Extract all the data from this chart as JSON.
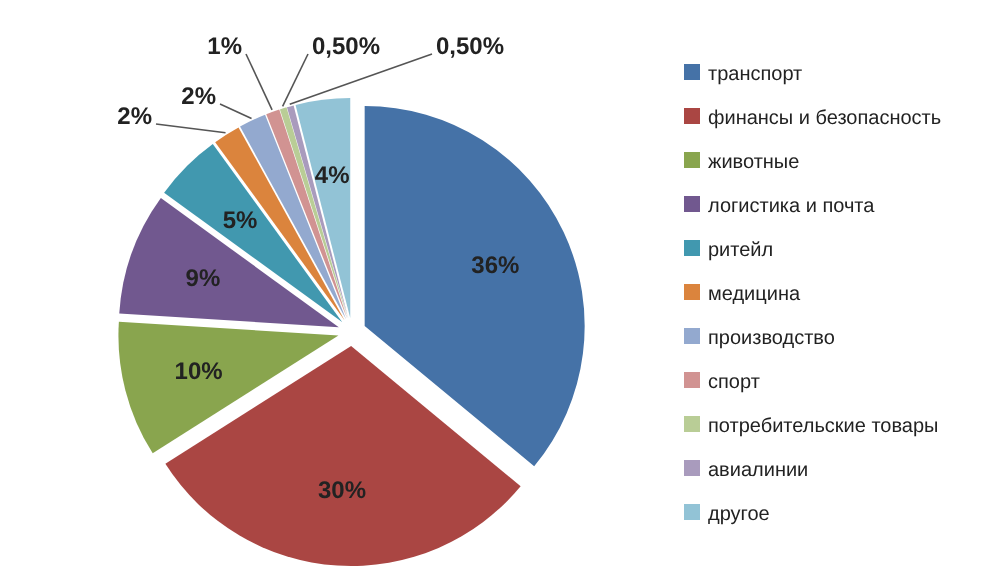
{
  "chart_data": {
    "type": "pie",
    "categories": [
      "транспорт",
      "финансы и безопасность",
      "животные",
      "логистика и почта",
      "ритейл",
      "медицина",
      "производство",
      "спорт",
      "потребительские товары",
      "авиалинии",
      "другое"
    ],
    "values": [
      36,
      30,
      10,
      9,
      5,
      2,
      2,
      1,
      0.5,
      0.5,
      4
    ],
    "value_labels": [
      "36%",
      "30%",
      "10%",
      "9%",
      "5%",
      "2%",
      "2%",
      "1%",
      "0,50%",
      "0,50%",
      "4%"
    ],
    "colors": [
      "#4572a7",
      "#aa4643",
      "#89a54e",
      "#71588f",
      "#4198af",
      "#db843d",
      "#93a9cf",
      "#d19392",
      "#b9cd96",
      "#a99bbd",
      "#92c3d6"
    ],
    "legend": "right"
  }
}
